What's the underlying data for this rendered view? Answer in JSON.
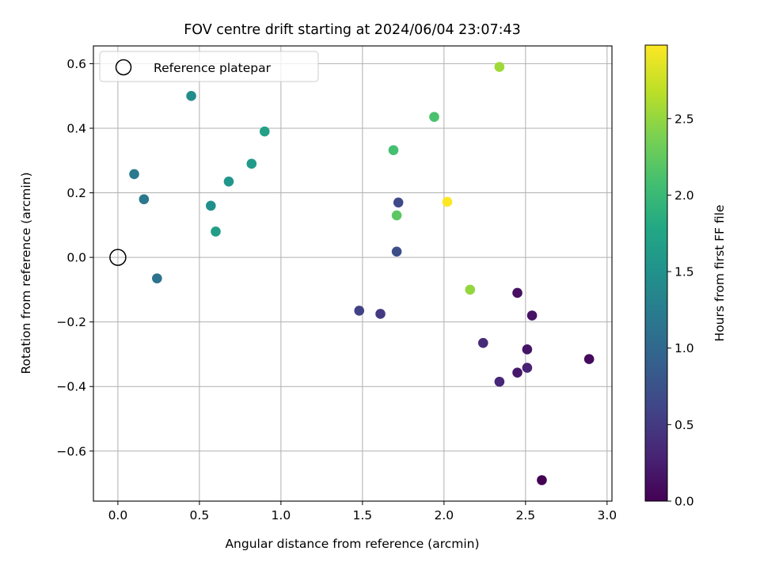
{
  "chart_data": {
    "type": "scatter",
    "title": "FOV centre drift starting at 2024/06/04 23:07:43",
    "xlabel": "Angular distance from reference (arcmin)",
    "ylabel": "Rotation from reference (arcmin)",
    "xlim": [
      -0.15,
      3.03
    ],
    "ylim": [
      -0.755,
      0.655
    ],
    "xticks": [
      0.0,
      0.5,
      1.0,
      1.5,
      2.0,
      2.5,
      3.0
    ],
    "xtick_labels": [
      "0.0",
      "0.5",
      "1.0",
      "1.5",
      "2.0",
      "2.5",
      "3.0"
    ],
    "yticks": [
      -0.6,
      -0.4,
      -0.2,
      0.0,
      0.2,
      0.4,
      0.6
    ],
    "ytick_labels": [
      "−0.6",
      "−0.4",
      "−0.2",
      "0.0",
      "0.2",
      "0.4",
      "0.6"
    ],
    "grid": true,
    "legend": {
      "placement": "top-left",
      "entries": [
        "Reference platepar"
      ]
    },
    "reference_point": {
      "x": 0.0,
      "y": 0.0
    },
    "colorbar": {
      "label": "Hours from first FF file",
      "colormap": "viridis",
      "range": [
        0.0,
        2.98
      ],
      "ticks": [
        0.0,
        0.5,
        1.0,
        1.5,
        2.0,
        2.5
      ],
      "tick_labels": [
        "0.0",
        "0.5",
        "1.0",
        "1.5",
        "2.0",
        "2.5"
      ]
    },
    "points": [
      {
        "x": 2.6,
        "y": -0.69,
        "hours": 0.0
      },
      {
        "x": 2.89,
        "y": -0.315,
        "hours": 0.08
      },
      {
        "x": 2.45,
        "y": -0.11,
        "hours": 0.12
      },
      {
        "x": 2.54,
        "y": -0.18,
        "hours": 0.15
      },
      {
        "x": 2.51,
        "y": -0.285,
        "hours": 0.17
      },
      {
        "x": 2.45,
        "y": -0.357,
        "hours": 0.2
      },
      {
        "x": 2.51,
        "y": -0.342,
        "hours": 0.28
      },
      {
        "x": 2.34,
        "y": -0.385,
        "hours": 0.33
      },
      {
        "x": 2.24,
        "y": -0.265,
        "hours": 0.35
      },
      {
        "x": 1.61,
        "y": -0.175,
        "hours": 0.5
      },
      {
        "x": 1.48,
        "y": -0.165,
        "hours": 0.58
      },
      {
        "x": 1.72,
        "y": 0.17,
        "hours": 0.65
      },
      {
        "x": 1.71,
        "y": 0.018,
        "hours": 0.7
      },
      {
        "x": 0.24,
        "y": -0.065,
        "hours": 1.12
      },
      {
        "x": 0.16,
        "y": 0.18,
        "hours": 1.18
      },
      {
        "x": 0.1,
        "y": 0.258,
        "hours": 1.22
      },
      {
        "x": 0.45,
        "y": 0.5,
        "hours": 1.45
      },
      {
        "x": 0.57,
        "y": 0.16,
        "hours": 1.48
      },
      {
        "x": 0.68,
        "y": 0.235,
        "hours": 1.55
      },
      {
        "x": 0.82,
        "y": 0.29,
        "hours": 1.62
      },
      {
        "x": 0.6,
        "y": 0.08,
        "hours": 1.66
      },
      {
        "x": 0.9,
        "y": 0.39,
        "hours": 1.7
      },
      {
        "x": 1.69,
        "y": 0.332,
        "hours": 2.08
      },
      {
        "x": 1.94,
        "y": 0.435,
        "hours": 2.12
      },
      {
        "x": 1.71,
        "y": 0.13,
        "hours": 2.22
      },
      {
        "x": 2.16,
        "y": -0.1,
        "hours": 2.5
      },
      {
        "x": 2.34,
        "y": 0.59,
        "hours": 2.55
      },
      {
        "x": 2.02,
        "y": 0.172,
        "hours": 2.98
      }
    ]
  }
}
